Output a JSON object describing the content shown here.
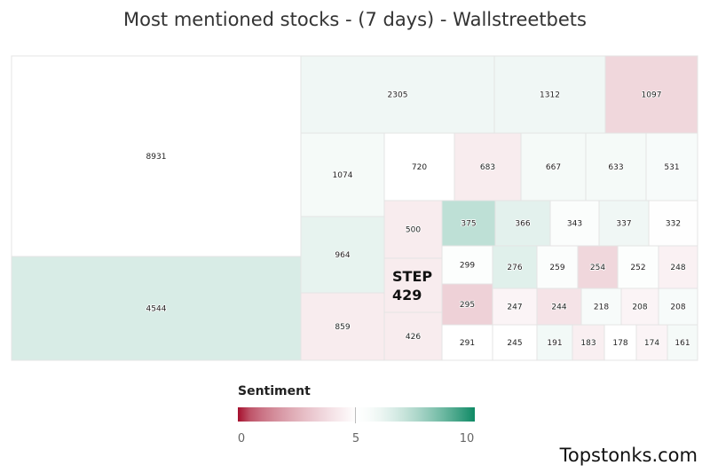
{
  "chart_data": {
    "type": "treemap",
    "title": "Most mentioned stocks - (7 days) - Wallstreetbets",
    "legend": {
      "title": "Sentiment",
      "min": 0,
      "mid": 5,
      "max": 10,
      "tick_labels": [
        "0",
        "5",
        "10"
      ],
      "colors": {
        "low": "#a50f2d",
        "mid": "#ffffff",
        "high": "#0f8a65"
      }
    },
    "callout": {
      "ticker": "STEP",
      "value": "429"
    },
    "items": [
      {
        "value": 8931,
        "sentiment": 5.0
      },
      {
        "value": 4544,
        "sentiment": 6.6
      },
      {
        "value": 2305,
        "sentiment": 5.9
      },
      {
        "value": 1312,
        "sentiment": 5.9
      },
      {
        "value": 1097,
        "sentiment": 3.6
      },
      {
        "value": 1074,
        "sentiment": 5.7
      },
      {
        "value": 964,
        "sentiment": 6.2
      },
      {
        "value": 859,
        "sentiment": 4.3
      },
      {
        "value": 720,
        "sentiment": 5.0
      },
      {
        "value": 683,
        "sentiment": 4.3
      },
      {
        "value": 667,
        "sentiment": 5.7
      },
      {
        "value": 633,
        "sentiment": 5.7
      },
      {
        "value": 531,
        "sentiment": 5.6
      },
      {
        "value": 500,
        "sentiment": 4.3
      },
      {
        "value": 429,
        "sentiment": 4.3
      },
      {
        "value": 426,
        "sentiment": 4.3
      },
      {
        "value": 375,
        "sentiment": 7.2
      },
      {
        "value": 366,
        "sentiment": 6.3
      },
      {
        "value": 343,
        "sentiment": 5.4
      },
      {
        "value": 337,
        "sentiment": 5.9
      },
      {
        "value": 332,
        "sentiment": 5.2
      },
      {
        "value": 299,
        "sentiment": 5.3
      },
      {
        "value": 295,
        "sentiment": 3.4
      },
      {
        "value": 291,
        "sentiment": 5.1
      },
      {
        "value": 276,
        "sentiment": 6.4
      },
      {
        "value": 259,
        "sentiment": 5.4
      },
      {
        "value": 254,
        "sentiment": 3.6
      },
      {
        "value": 252,
        "sentiment": 5.3
      },
      {
        "value": 248,
        "sentiment": 4.5
      },
      {
        "value": 247,
        "sentiment": 4.6
      },
      {
        "value": 245,
        "sentiment": 5.1
      },
      {
        "value": 244,
        "sentiment": 4.0
      },
      {
        "value": 218,
        "sentiment": 5.6
      },
      {
        "value": 208,
        "sentiment": 4.6
      },
      {
        "value": 208,
        "sentiment": 5.6
      },
      {
        "value": 191,
        "sentiment": 5.8
      },
      {
        "value": 183,
        "sentiment": 4.4
      },
      {
        "value": 178,
        "sentiment": 5.0
      },
      {
        "value": 174,
        "sentiment": 4.6
      },
      {
        "value": 161,
        "sentiment": 5.7
      }
    ]
  },
  "footer": {
    "watermark": "Topstonks.com"
  }
}
